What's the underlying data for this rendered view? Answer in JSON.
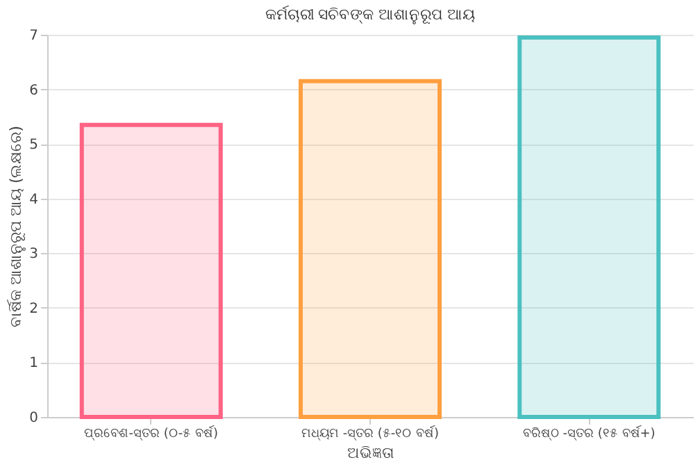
{
  "chart_data": {
    "type": "bar",
    "title": "କର୍ମଚାରୀ ସଚିବଙ୍କ ଆଶାନୁରୂପ ଆୟ",
    "xlabel": "ଅଭିଜ୍ଞତା",
    "ylabel": "ବାର୍ଷିକ ଆଶାନୁରୂପ ଆୟ (ଲକ୍ଷରେ)",
    "categories": [
      "ପ୍ରବେଶ-ସ୍ତର (୦-୫ ବର୍ଷ)",
      "ମଧ୍ୟମ -ସ୍ତର (୫-୧୦ ବର୍ଷ)",
      "ବରିଷ୍ଠ -ସ୍ତର  (୧୫ ବର୍ଷ+)"
    ],
    "values": [
      5.35,
      6.15,
      6.95
    ],
    "colors": [
      "#ff6384",
      "#ff9f40",
      "#4bc0c0"
    ],
    "ylim": [
      0,
      7
    ],
    "yticks": [
      0,
      1,
      2,
      3,
      4,
      5,
      6,
      7
    ],
    "grid": "y"
  }
}
